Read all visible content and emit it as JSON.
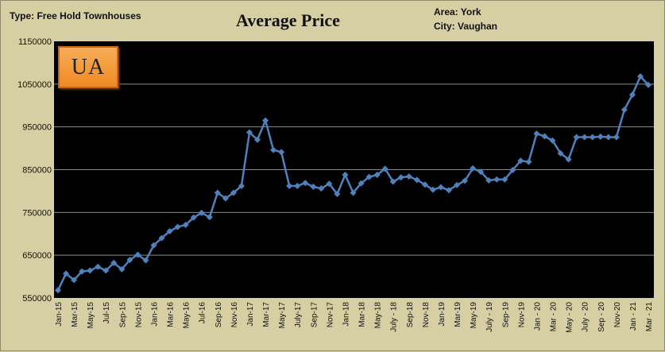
{
  "header": {
    "type_label": "Type: Free Hold Townhouses",
    "area_label": "Area: York",
    "city_label": "City: Vaughan"
  },
  "logo": {
    "text": "UA"
  },
  "colors": {
    "line": "#4f81bd",
    "plot_background": "#000000",
    "page_background": "#d5cfa3",
    "logo": "#f39a35"
  },
  "chart_data": {
    "type": "line",
    "title": "Average Price",
    "ylim": [
      550000,
      1150000
    ],
    "y_ticks": [
      "550000",
      "650000",
      "750000",
      "850000",
      "950000",
      "1050000",
      "1150000"
    ],
    "x_tick_labels": [
      "Jan-15",
      "Mar-15",
      "May-15",
      "Jul-15",
      "Sep-15",
      "Nov-15",
      "Jan-16",
      "Mar-16",
      "May-16",
      "Jul-16",
      "Sep-16",
      "Nov-16",
      "Jan-17",
      "Mar-17",
      "May-17",
      "July-17",
      "Sep-17",
      "Nov-17",
      "Jan-18",
      "Mar-18",
      "May-18",
      "July - 18",
      "Sep-18",
      "Nov-18",
      "Jan-19",
      "Mar-19",
      "May-19",
      "July - 19",
      "Sep-19",
      "Nov-19",
      "Jan - 20",
      "Mar - 20",
      "May - 20",
      "July - 20",
      "Sep - 20",
      "Nov-20",
      "Jan - 21",
      "Mar - 21"
    ],
    "grid": true,
    "legend": "none",
    "series": [
      {
        "values": [
          568000,
          607000,
          592000,
          612000,
          614000,
          623000,
          614000,
          632000,
          617000,
          639000,
          651000,
          638000,
          673000,
          690000,
          706000,
          716000,
          721000,
          738000,
          749000,
          739000,
          796000,
          783000,
          796000,
          812000,
          937000,
          920000,
          965000,
          896000,
          891000,
          812000,
          812000,
          819000,
          810000,
          806000,
          817000,
          793000,
          838000,
          796000,
          818000,
          833000,
          838000,
          852000,
          822000,
          832000,
          834000,
          826000,
          815000,
          803000,
          809000,
          802000,
          814000,
          824000,
          853000,
          845000,
          825000,
          827000,
          827000,
          849000,
          871000,
          868000,
          934000,
          928000,
          918000,
          888000,
          874000,
          926000,
          926000,
          926000,
          927000,
          926000,
          926000,
          990000,
          1025000,
          1068000,
          1048000
        ]
      }
    ]
  }
}
